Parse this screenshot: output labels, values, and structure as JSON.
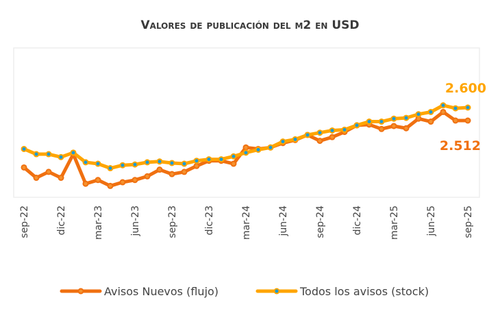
{
  "chart_data": {
    "type": "line",
    "title": "Valores de publicación del m2 en USD",
    "xlabel": "",
    "ylabel": "",
    "x": [
      "sep-22",
      "oct-22",
      "nov-22",
      "dic-22",
      "ene-23",
      "feb-23",
      "mar-23",
      "abr-23",
      "may-23",
      "jun-23",
      "jul-23",
      "ago-23",
      "sep-23",
      "oct-23",
      "nov-23",
      "dic-23",
      "ene-24",
      "feb-24",
      "mar-24",
      "abr-24",
      "may-24",
      "jun-24",
      "jul-24",
      "ago-24",
      "sep-24",
      "oct-24",
      "nov-24",
      "dic-24",
      "ene-25",
      "feb-25",
      "mar-25",
      "abr-25",
      "may-25",
      "jun-25",
      "jul-25",
      "ago-25",
      "sep-25"
    ],
    "tick_labels": [
      "sep-22",
      "dic-22",
      "mar-23",
      "jun-23",
      "sep-23",
      "dic-23",
      "mar-24",
      "jun-24",
      "sep-24",
      "dic-24",
      "mar-25",
      "jun-25",
      "sep-25"
    ],
    "ylim": [
      2020,
      2700
    ],
    "grid": false,
    "legend_position": "bottom",
    "series": [
      {
        "name": "Avisos Nuevos (flujo)",
        "color": "#F07010",
        "marker_color": "#F5922E",
        "end_label": "2.512",
        "values": [
          2195,
          2125,
          2165,
          2125,
          2285,
          2085,
          2110,
          2070,
          2095,
          2110,
          2135,
          2180,
          2150,
          2165,
          2205,
          2240,
          2240,
          2220,
          2330,
          2320,
          2330,
          2360,
          2380,
          2415,
          2375,
          2400,
          2435,
          2480,
          2485,
          2455,
          2475,
          2460,
          2525,
          2505,
          2570,
          2512,
          2512
        ]
      },
      {
        "name": "Todos los avisos (stock)",
        "color": "#FFA500",
        "marker_color": "#1A9BD7",
        "end_label": "2.600",
        "values": [
          2320,
          2285,
          2285,
          2265,
          2295,
          2230,
          2220,
          2190,
          2210,
          2215,
          2230,
          2235,
          2225,
          2220,
          2240,
          2250,
          2250,
          2270,
          2295,
          2315,
          2330,
          2370,
          2385,
          2415,
          2430,
          2445,
          2450,
          2480,
          2505,
          2505,
          2525,
          2530,
          2555,
          2570,
          2615,
          2595,
          2600
        ]
      }
    ]
  }
}
